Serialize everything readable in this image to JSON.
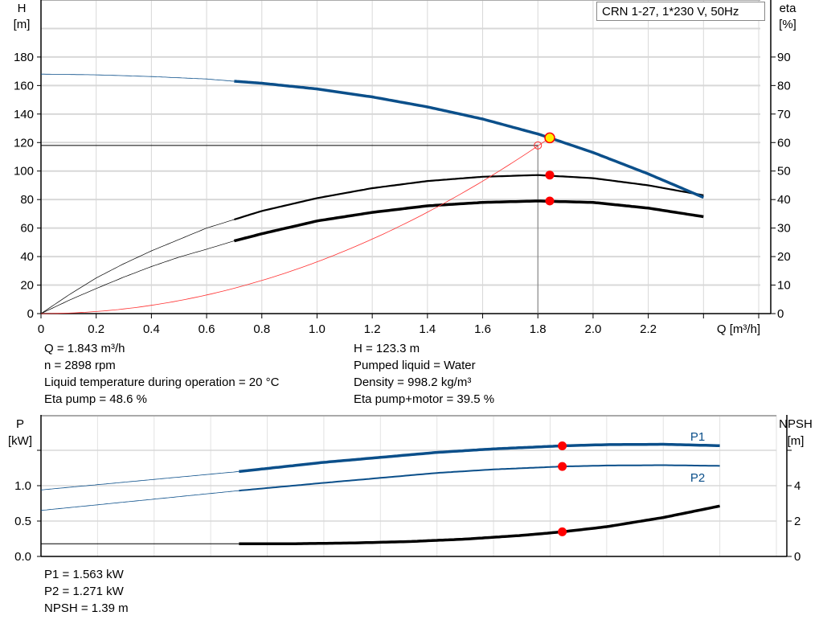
{
  "legend_box": "CRN 1-27, 1*230 V, 50Hz",
  "colors": {
    "head": "#0b4f8a",
    "eta": "#000000",
    "system": "#ff3030",
    "duty_point_fill": "#ffee00",
    "duty_point_stroke": "#ff0000",
    "marker": "#ff0000",
    "grid": "#d8d8d8"
  },
  "info_left": [
    "Q = 1.843 m³/h",
    "n = 2898 rpm",
    "Liquid temperature during operation = 20 °C",
    "Eta pump = 48.6 %"
  ],
  "info_right": [
    "H = 123.3 m",
    "Pumped liquid = Water",
    "Density = 998.2 kg/m³",
    "Eta pump+motor = 39.5 %"
  ],
  "info_bottom": [
    "P1 = 1.563 kW",
    "P2 = 1.271 kW",
    "NPSH = 1.39 m"
  ],
  "chart_data": [
    {
      "type": "line",
      "xlabel": "Q [m³/h]",
      "ylabel_left": [
        "H",
        "[m]"
      ],
      "ylabel_right": [
        "eta",
        "[%]"
      ],
      "xlim": [
        0,
        2.6
      ],
      "ylim_left": [
        0,
        220
      ],
      "ylim_right": [
        0,
        110
      ],
      "x_ticks": [
        "0",
        "0.2",
        "0.4",
        "0.6",
        "0.8",
        "1.0",
        "1.2",
        "1.4",
        "1.6",
        "1.8",
        "2.0",
        "2.2"
      ],
      "y_ticks_left": [
        "0",
        "20",
        "40",
        "60",
        "80",
        "100",
        "120",
        "140",
        "160",
        "180"
      ],
      "y_ticks_right": [
        "0",
        "10",
        "20",
        "30",
        "40",
        "50",
        "60",
        "70",
        "80",
        "90"
      ],
      "grid": true,
      "series": [
        {
          "key": "H",
          "axis": "left",
          "x": [
            0,
            0.2,
            0.4,
            0.6,
            0.7,
            0.8,
            1.0,
            1.2,
            1.4,
            1.6,
            1.8,
            1.843,
            2.0,
            2.2,
            2.4
          ],
          "y": [
            168,
            167.5,
            166.3,
            164.6,
            163,
            161.6,
            157.6,
            152,
            145,
            136.5,
            126,
            123.3,
            113,
            98,
            81.5
          ]
        },
        {
          "key": "eta_pump",
          "axis": "right",
          "x": [
            0,
            0.1,
            0.2,
            0.3,
            0.4,
            0.5,
            0.6,
            0.7,
            0.8,
            1.0,
            1.2,
            1.4,
            1.6,
            1.8,
            2.0,
            2.2,
            2.4
          ],
          "y": [
            0,
            6.5,
            12.5,
            17.5,
            22,
            26,
            30,
            33,
            36,
            40.5,
            44,
            46.5,
            48,
            48.6,
            47.5,
            45,
            41.5
          ]
        },
        {
          "key": "eta_pump_motor",
          "axis": "right",
          "x": [
            0,
            0.1,
            0.2,
            0.3,
            0.4,
            0.5,
            0.6,
            0.7,
            0.8,
            1.0,
            1.2,
            1.4,
            1.6,
            1.8,
            2.0,
            2.2,
            2.4
          ],
          "y": [
            0,
            4.6,
            8.8,
            12.8,
            16.5,
            19.8,
            22.6,
            25.5,
            28,
            32.5,
            35.5,
            37.8,
            39,
            39.5,
            39,
            37,
            34
          ]
        },
        {
          "key": "system_curve",
          "axis": "left",
          "formula": "H = 36.3 * Q^2",
          "x_range": [
            0,
            1.843
          ]
        }
      ],
      "duty_point": {
        "Q": 1.843,
        "H": 123.3,
        "eta_pump": 48.6,
        "eta_pump_motor": 39.5
      },
      "reference_point": {
        "Q": 1.8,
        "H": 118
      }
    },
    {
      "type": "line",
      "ylabel_left": [
        "P",
        "[kW]"
      ],
      "ylabel_right": [
        "NPSH",
        "[m]"
      ],
      "xlim": [
        0,
        2.6
      ],
      "ylim_left": [
        0,
        2.0
      ],
      "ylim_right": [
        0,
        8
      ],
      "y_ticks_left": [
        "0.0",
        "0.5",
        "1.0"
      ],
      "y_ticks_right": [
        "0",
        "2",
        "4"
      ],
      "grid": true,
      "series": [
        {
          "name": "P1",
          "axis": "left",
          "x": [
            0,
            0.35,
            0.7,
            1.0,
            1.2,
            1.4,
            1.6,
            1.843,
            2.0,
            2.2,
            2.4
          ],
          "y": [
            0.94,
            1.07,
            1.2,
            1.33,
            1.4,
            1.47,
            1.52,
            1.563,
            1.58,
            1.585,
            1.565
          ]
        },
        {
          "name": "P2",
          "axis": "left",
          "x": [
            0,
            0.35,
            0.7,
            1.0,
            1.2,
            1.4,
            1.6,
            1.843,
            2.0,
            2.2,
            2.4
          ],
          "y": [
            0.65,
            0.79,
            0.93,
            1.04,
            1.11,
            1.18,
            1.23,
            1.271,
            1.285,
            1.29,
            1.28
          ]
        },
        {
          "key": "NPSH",
          "axis": "right",
          "x": [
            0,
            0.7,
            0.9,
            1.1,
            1.3,
            1.5,
            1.7,
            1.843,
            2.0,
            2.2,
            2.4
          ],
          "y": [
            0.72,
            0.72,
            0.72,
            0.76,
            0.84,
            0.98,
            1.19,
            1.39,
            1.68,
            2.2,
            2.85
          ]
        }
      ],
      "duty_point": {
        "Q": 1.843,
        "P1": 1.563,
        "P2": 1.271,
        "NPSH": 1.39
      }
    }
  ]
}
